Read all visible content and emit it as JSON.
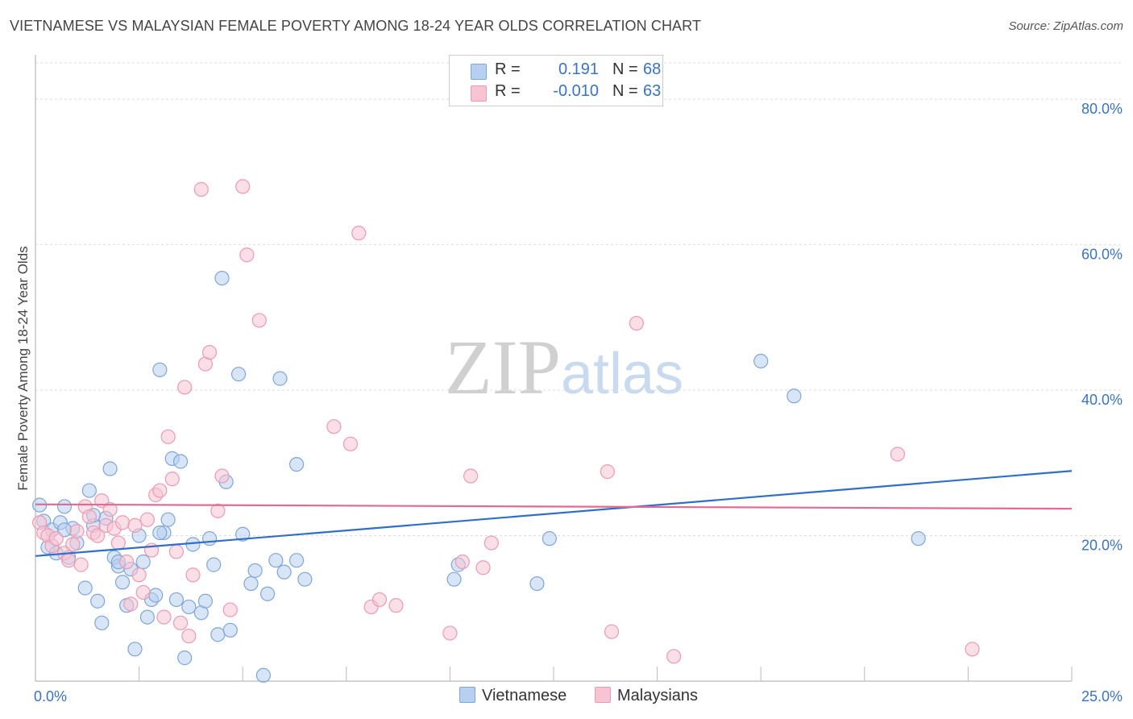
{
  "title": "VIETNAMESE VS MALAYSIAN FEMALE POVERTY AMONG 18-24 YEAR OLDS CORRELATION CHART",
  "source": "Source: ZipAtlas.com",
  "watermark": {
    "zip": "ZIP",
    "atlas": "atlas"
  },
  "legend_top": {
    "series1": {
      "r_label": "R =",
      "r_value": "0.191",
      "n_label": "N =",
      "n_value": "68"
    },
    "series2": {
      "r_label": "R =",
      "r_value": "-0.010",
      "n_label": "N =",
      "n_value": "63"
    }
  },
  "colors": {
    "blue_fill": "#b8d0f0",
    "blue_stroke": "#7fa6d9",
    "blue_line": "#2f6fc9",
    "pink_fill": "#f7c4d4",
    "pink_stroke": "#eb9ab4",
    "pink_line": "#e36b93",
    "grid": "#dddddd",
    "tick_label": "#3a72c4"
  },
  "chart_data": {
    "type": "scatter",
    "title": "VIETNAMESE VS MALAYSIAN FEMALE POVERTY AMONG 18-24 YEAR OLDS CORRELATION CHART",
    "xlabel": "",
    "ylabel": "Female Poverty Among 18-24 Year Olds",
    "xlim": [
      0,
      25
    ],
    "ylim": [
      0,
      85
    ],
    "x_tick_labels": [
      "0.0%",
      "25.0%"
    ],
    "y_ticks": [
      20,
      40,
      60,
      80
    ],
    "y_tick_labels": [
      "20.0%",
      "40.0%",
      "60.0%",
      "80.0%"
    ],
    "grid": true,
    "legend": [
      "Vietnamese",
      "Malaysians"
    ],
    "series": [
      {
        "name": "Vietnamese",
        "trend": {
          "x": [
            0,
            25
          ],
          "y": [
            17.2,
            28.9
          ]
        },
        "points": [
          [
            0.1,
            24.2
          ],
          [
            0.2,
            22.0
          ],
          [
            0.3,
            18.4
          ],
          [
            0.4,
            20.8
          ],
          [
            0.5,
            17.6
          ],
          [
            0.6,
            21.8
          ],
          [
            0.7,
            24.0
          ],
          [
            0.8,
            17.0
          ],
          [
            0.9,
            21.0
          ],
          [
            1.0,
            19.0
          ],
          [
            1.2,
            12.8
          ],
          [
            1.3,
            26.2
          ],
          [
            1.4,
            21.4
          ],
          [
            1.5,
            11.0
          ],
          [
            1.6,
            8.0
          ],
          [
            1.7,
            22.4
          ],
          [
            1.8,
            29.2
          ],
          [
            1.9,
            17.0
          ],
          [
            2.0,
            15.8
          ],
          [
            2.1,
            13.6
          ],
          [
            2.2,
            10.4
          ],
          [
            2.3,
            15.4
          ],
          [
            2.4,
            4.4
          ],
          [
            2.5,
            20.0
          ],
          [
            2.6,
            16.4
          ],
          [
            2.7,
            8.8
          ],
          [
            2.8,
            11.2
          ],
          [
            2.9,
            11.8
          ],
          [
            3.0,
            42.8
          ],
          [
            3.1,
            20.4
          ],
          [
            3.2,
            22.2
          ],
          [
            3.3,
            30.6
          ],
          [
            3.4,
            11.2
          ],
          [
            3.5,
            30.2
          ],
          [
            3.6,
            3.2
          ],
          [
            3.7,
            10.2
          ],
          [
            3.8,
            18.8
          ],
          [
            4.0,
            9.4
          ],
          [
            4.1,
            11.0
          ],
          [
            4.2,
            19.6
          ],
          [
            4.3,
            16.0
          ],
          [
            4.4,
            6.4
          ],
          [
            4.5,
            55.4
          ],
          [
            4.6,
            27.4
          ],
          [
            4.7,
            7.0
          ],
          [
            4.9,
            42.2
          ],
          [
            5.0,
            20.2
          ],
          [
            5.2,
            13.4
          ],
          [
            5.3,
            15.2
          ],
          [
            5.5,
            0.8
          ],
          [
            5.6,
            12.0
          ],
          [
            5.8,
            16.6
          ],
          [
            6.0,
            15.0
          ],
          [
            6.3,
            16.6
          ],
          [
            6.5,
            14.0
          ],
          [
            5.9,
            41.6
          ],
          [
            6.3,
            29.8
          ],
          [
            10.1,
            14.0
          ],
          [
            10.2,
            16.0
          ],
          [
            12.1,
            13.4
          ],
          [
            12.4,
            19.6
          ],
          [
            17.5,
            44.0
          ],
          [
            18.3,
            39.2
          ],
          [
            21.3,
            19.6
          ],
          [
            3.0,
            20.4
          ],
          [
            2.0,
            16.4
          ],
          [
            1.4,
            22.8
          ],
          [
            0.7,
            20.8
          ]
        ]
      },
      {
        "name": "Malaysians",
        "trend": {
          "x": [
            0,
            25
          ],
          "y": [
            24.3,
            23.7
          ]
        },
        "points": [
          [
            0.1,
            21.8
          ],
          [
            0.2,
            20.4
          ],
          [
            0.3,
            20.0
          ],
          [
            0.4,
            18.6
          ],
          [
            0.5,
            19.6
          ],
          [
            0.7,
            17.6
          ],
          [
            0.8,
            16.6
          ],
          [
            0.9,
            18.8
          ],
          [
            1.0,
            20.6
          ],
          [
            1.1,
            16.0
          ],
          [
            1.2,
            24.0
          ],
          [
            1.3,
            22.6
          ],
          [
            1.4,
            20.4
          ],
          [
            1.5,
            20.0
          ],
          [
            1.6,
            24.8
          ],
          [
            1.7,
            21.4
          ],
          [
            1.8,
            23.6
          ],
          [
            1.9,
            21.0
          ],
          [
            2.0,
            19.0
          ],
          [
            2.1,
            21.8
          ],
          [
            2.2,
            16.4
          ],
          [
            2.3,
            10.6
          ],
          [
            2.4,
            21.4
          ],
          [
            2.5,
            14.6
          ],
          [
            2.6,
            12.2
          ],
          [
            2.7,
            22.2
          ],
          [
            2.8,
            18.0
          ],
          [
            2.9,
            25.6
          ],
          [
            3.0,
            26.2
          ],
          [
            3.1,
            8.8
          ],
          [
            3.2,
            33.6
          ],
          [
            3.3,
            27.8
          ],
          [
            3.4,
            17.8
          ],
          [
            3.5,
            8.0
          ],
          [
            3.6,
            40.4
          ],
          [
            3.7,
            6.2
          ],
          [
            3.8,
            14.6
          ],
          [
            4.0,
            67.6
          ],
          [
            4.1,
            43.6
          ],
          [
            4.2,
            45.2
          ],
          [
            4.4,
            23.4
          ],
          [
            4.5,
            28.2
          ],
          [
            4.7,
            9.8
          ],
          [
            5.0,
            68.0
          ],
          [
            5.1,
            58.6
          ],
          [
            5.4,
            49.6
          ],
          [
            7.2,
            35.0
          ],
          [
            7.6,
            32.6
          ],
          [
            7.8,
            61.6
          ],
          [
            8.1,
            10.2
          ],
          [
            8.3,
            11.2
          ],
          [
            8.7,
            10.4
          ],
          [
            10.0,
            6.6
          ],
          [
            10.3,
            16.4
          ],
          [
            10.5,
            28.2
          ],
          [
            10.8,
            15.6
          ],
          [
            11.0,
            19.0
          ],
          [
            13.8,
            28.8
          ],
          [
            13.9,
            6.8
          ],
          [
            14.5,
            49.2
          ],
          [
            15.4,
            3.4
          ],
          [
            20.8,
            31.2
          ],
          [
            22.6,
            4.4
          ]
        ]
      }
    ]
  }
}
